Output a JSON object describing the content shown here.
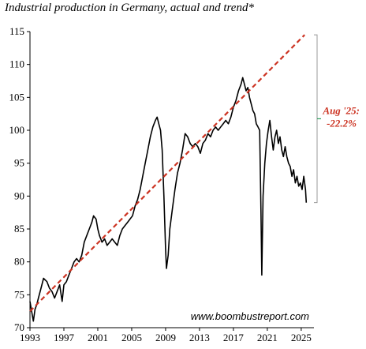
{
  "chart_data": {
    "type": "line",
    "title": "Industrial production in Germany, actual and trend*",
    "xlabel": "",
    "ylabel": "",
    "xlim": [
      1993,
      2026.5
    ],
    "ylim": [
      70,
      115
    ],
    "x_ticks": [
      "1993",
      "1997",
      "2001",
      "2005",
      "2009",
      "2013",
      "2017",
      "2021",
      "2025"
    ],
    "y_ticks": [
      "70",
      "75",
      "80",
      "85",
      "90",
      "95",
      "100",
      "105",
      "110",
      "115"
    ],
    "grid": false,
    "series": [
      {
        "style": "solid",
        "color": "#000000",
        "x": [
          1993.0,
          1993.2,
          1993.4,
          1993.6,
          1993.8,
          1994.0,
          1994.3,
          1994.6,
          1995.0,
          1995.3,
          1995.6,
          1995.9,
          1996.2,
          1996.5,
          1996.8,
          1997.0,
          1997.3,
          1997.6,
          1997.9,
          1998.2,
          1998.5,
          1998.8,
          1999.1,
          1999.4,
          1999.7,
          2000.0,
          2000.3,
          2000.5,
          2000.8,
          2001.0,
          2001.2,
          2001.5,
          2001.8,
          2002.1,
          2002.4,
          2002.7,
          2003.0,
          2003.3,
          2003.6,
          2003.9,
          2004.2,
          2004.5,
          2004.8,
          2005.1,
          2005.4,
          2005.7,
          2006.0,
          2006.3,
          2006.6,
          2006.9,
          2007.2,
          2007.5,
          2007.8,
          2008.0,
          2008.2,
          2008.4,
          2008.6,
          2008.8,
          2009.0,
          2009.1,
          2009.3,
          2009.5,
          2009.8,
          2010.1,
          2010.4,
          2010.7,
          2011.0,
          2011.3,
          2011.6,
          2011.9,
          2012.2,
          2012.5,
          2012.8,
          2013.1,
          2013.4,
          2013.7,
          2014.0,
          2014.3,
          2014.6,
          2014.9,
          2015.2,
          2015.5,
          2015.8,
          2016.1,
          2016.4,
          2016.7,
          2017.0,
          2017.3,
          2017.6,
          2017.9,
          2018.1,
          2018.3,
          2018.5,
          2018.7,
          2018.9,
          2019.1,
          2019.3,
          2019.5,
          2019.7,
          2019.9,
          2020.1,
          2020.25,
          2020.35,
          2020.5,
          2020.7,
          2020.9,
          2021.1,
          2021.3,
          2021.5,
          2021.7,
          2021.9,
          2022.1,
          2022.3,
          2022.5,
          2022.7,
          2022.9,
          2023.1,
          2023.3,
          2023.5,
          2023.7,
          2023.9,
          2024.1,
          2024.3,
          2024.5,
          2024.7,
          2024.9,
          2025.1,
          2025.3,
          2025.5,
          2025.6
        ],
        "y": [
          74.0,
          72.5,
          71.0,
          72.8,
          73.5,
          74.5,
          76.0,
          77.5,
          77.0,
          76.0,
          75.5,
          74.5,
          75.5,
          76.5,
          74.0,
          76.5,
          77.0,
          78.0,
          79.0,
          80.0,
          80.5,
          80.0,
          81.0,
          83.0,
          84.0,
          85.0,
          86.0,
          87.0,
          86.5,
          85.0,
          84.0,
          83.0,
          83.5,
          82.5,
          83.0,
          83.5,
          83.0,
          82.5,
          84.0,
          85.0,
          85.5,
          86.0,
          86.5,
          87.0,
          88.5,
          89.5,
          91.0,
          93.0,
          95.0,
          97.0,
          99.0,
          100.5,
          101.5,
          102.0,
          101.0,
          100.0,
          97.0,
          90.0,
          82.0,
          79.0,
          81.0,
          85.0,
          88.0,
          91.0,
          93.5,
          95.0,
          97.0,
          99.5,
          99.0,
          98.0,
          97.5,
          98.0,
          97.5,
          96.5,
          98.0,
          98.5,
          99.5,
          99.0,
          100.0,
          100.5,
          100.0,
          100.5,
          101.0,
          101.5,
          101.0,
          102.0,
          103.5,
          104.5,
          106.0,
          107.0,
          108.0,
          107.0,
          106.0,
          106.5,
          105.0,
          104.0,
          103.0,
          102.5,
          101.0,
          100.5,
          100.0,
          88.0,
          78.0,
          90.0,
          95.0,
          98.0,
          100.0,
          101.5,
          99.0,
          97.0,
          99.0,
          100.0,
          98.0,
          99.0,
          97.0,
          96.0,
          97.5,
          96.0,
          95.0,
          94.5,
          93.0,
          94.0,
          92.0,
          93.0,
          91.5,
          92.0,
          91.0,
          93.0,
          91.0,
          89.0
        ]
      },
      {
        "style": "dashed",
        "color": "#cc3322",
        "x": [
          1993.0,
          2025.4
        ],
        "y": [
          72.5,
          114.5
        ]
      }
    ],
    "annotations": {
      "date_label": "Aug '25:",
      "value_label": "-22.2%",
      "watermark": "www.boombustreport.com"
    }
  }
}
